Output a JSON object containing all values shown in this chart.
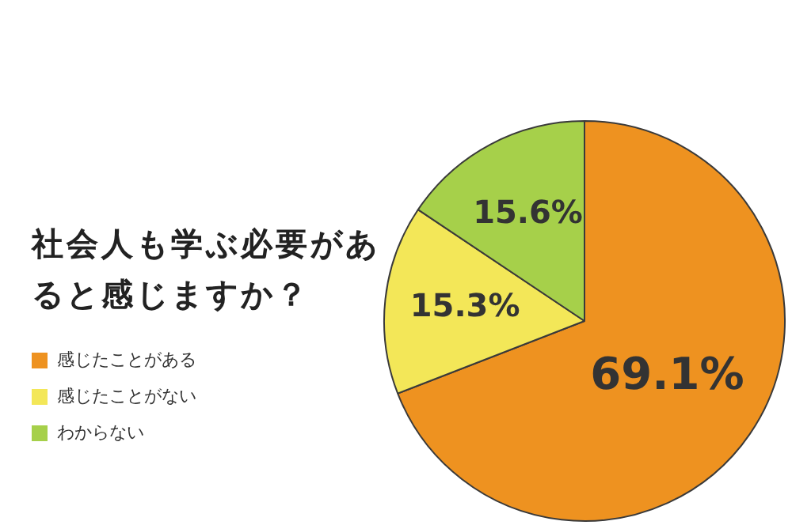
{
  "chart_data": {
    "type": "pie",
    "title": "社会人も学ぶ必要があると感じますか？",
    "categories": [
      "感じたことがある",
      "感じたことがない",
      "わからない"
    ],
    "values": [
      69.1,
      15.3,
      15.6
    ],
    "colors": [
      "#ee9220",
      "#f3e758",
      "#a6d04a"
    ],
    "value_labels": [
      "69.1%",
      "15.3%",
      "15.6%"
    ],
    "legend": "left"
  }
}
